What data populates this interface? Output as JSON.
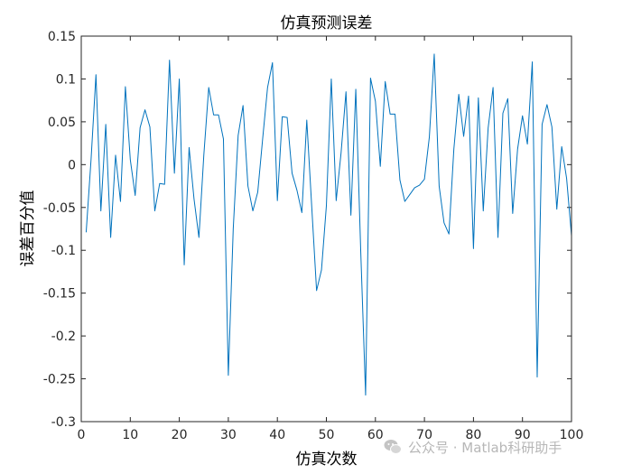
{
  "chart_data": {
    "type": "line",
    "title": "仿真预测误差",
    "xlabel": "仿真次数",
    "ylabel": "误差百分值",
    "xlim": [
      0,
      100
    ],
    "ylim": [
      -0.3,
      0.15
    ],
    "xticks": [
      0,
      10,
      20,
      30,
      40,
      50,
      60,
      70,
      80,
      90,
      100
    ],
    "yticks": [
      -0.3,
      -0.25,
      -0.2,
      -0.15,
      -0.1,
      -0.05,
      0,
      0.05,
      0.1,
      0.15
    ],
    "grid": false,
    "line_color": "#0072BD",
    "series": [
      {
        "x": [
          1,
          2,
          3,
          4,
          5,
          6,
          7,
          8,
          9,
          10,
          11,
          12,
          13,
          14,
          15,
          16,
          17,
          18,
          19,
          20,
          21,
          22,
          23,
          24,
          25,
          26,
          27,
          28,
          29,
          30,
          31,
          32,
          33,
          34,
          35,
          36,
          37,
          38,
          39,
          40,
          41,
          42,
          43,
          44,
          45,
          46,
          47,
          48,
          49,
          50,
          51,
          52,
          53,
          54,
          55,
          56,
          57,
          58,
          59,
          60,
          61,
          62,
          63,
          64,
          65,
          66,
          67,
          68,
          69,
          70,
          71,
          72,
          73,
          74,
          75,
          76,
          77,
          78,
          79,
          80,
          81,
          82,
          83,
          84,
          85,
          86,
          87,
          88,
          89,
          90,
          91,
          92,
          93,
          94,
          95,
          96,
          97,
          98,
          99,
          100
        ],
        "values": [
          -0.079,
          0.006,
          0.105,
          -0.054,
          0.047,
          -0.085,
          0.011,
          -0.043,
          0.091,
          0.006,
          -0.036,
          0.043,
          0.064,
          0.044,
          -0.054,
          -0.022,
          -0.023,
          0.122,
          -0.01,
          0.1,
          -0.117,
          0.02,
          -0.04,
          -0.085,
          0.011,
          0.09,
          0.058,
          0.058,
          0.03,
          -0.246,
          -0.075,
          0.034,
          0.069,
          -0.025,
          -0.054,
          -0.032,
          0.03,
          0.09,
          0.119,
          -0.042,
          0.056,
          0.055,
          -0.01,
          -0.03,
          -0.056,
          0.052,
          -0.048,
          -0.147,
          -0.123,
          -0.048,
          0.1,
          -0.042,
          0.014,
          0.085,
          -0.059,
          0.088,
          -0.1,
          -0.269,
          0.101,
          0.074,
          -0.002,
          0.097,
          0.059,
          0.059,
          -0.018,
          -0.043,
          -0.035,
          -0.027,
          -0.024,
          -0.017,
          0.032,
          0.129,
          -0.025,
          -0.068,
          -0.081,
          0.018,
          0.082,
          0.033,
          0.08,
          -0.098,
          0.078,
          -0.054,
          0.043,
          0.09,
          -0.085,
          0.06,
          0.077,
          -0.057,
          0.018,
          0.057,
          0.024,
          0.12,
          -0.248,
          0.047,
          0.07,
          0.044,
          -0.052,
          0.021,
          -0.016,
          -0.083
        ]
      }
    ]
  },
  "watermark": {
    "text": "公众号 · Matlab科研助手",
    "icon": "wechat-icon"
  }
}
